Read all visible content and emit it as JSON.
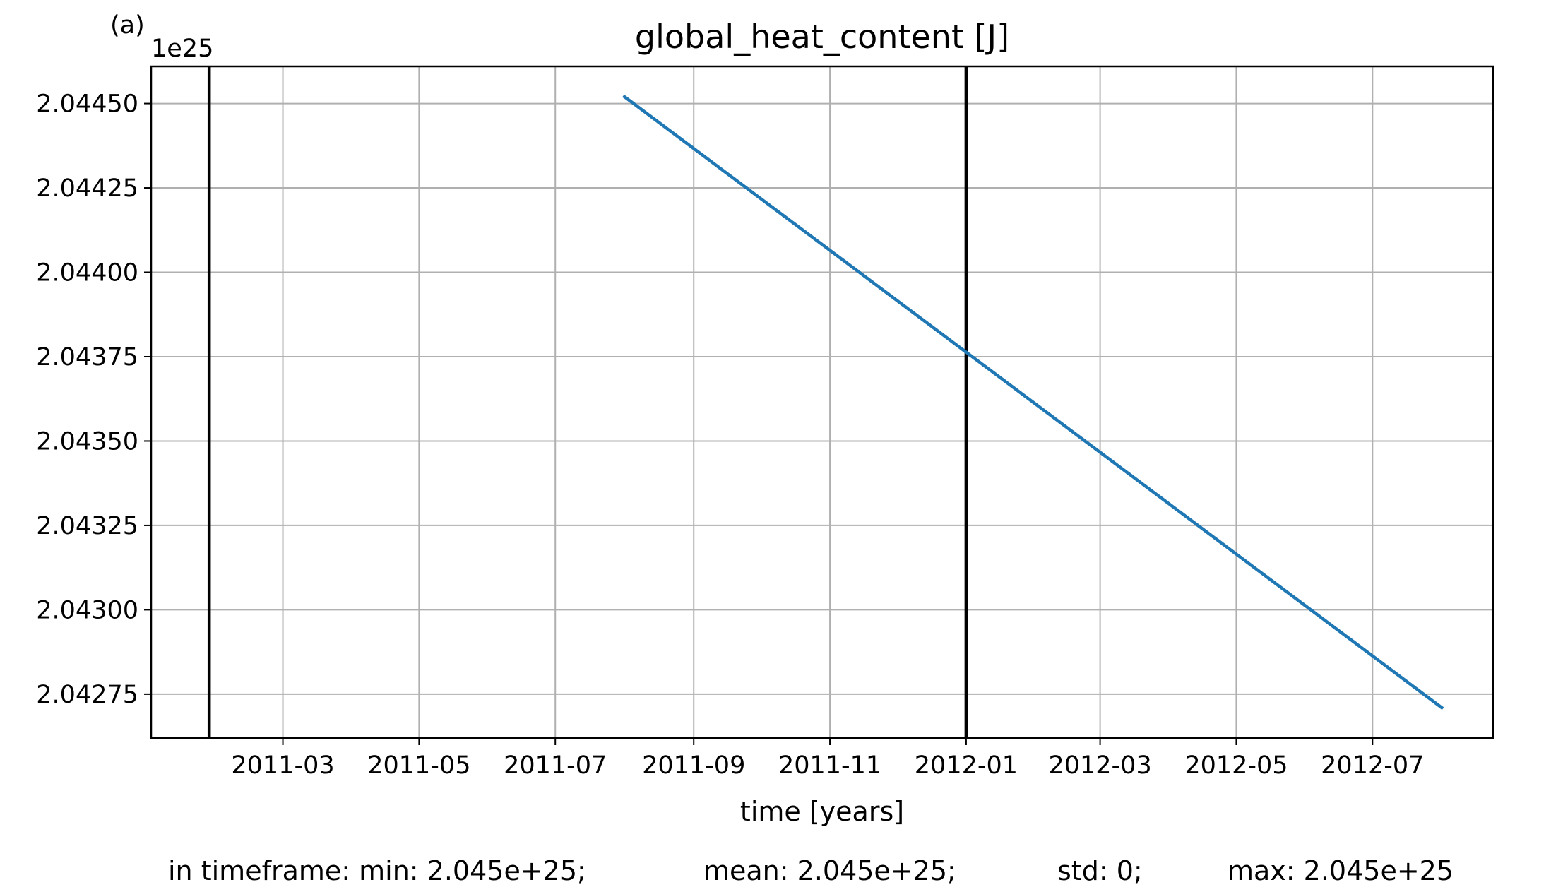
{
  "panel_label": "(a)",
  "chart_data": {
    "type": "line",
    "title": "global_heat_content [J]",
    "xlabel": "time [years]",
    "ylabel": "",
    "offset_label": "1e25",
    "y_scale_exponent": 25,
    "xlim": [
      "2011-01-01",
      "2012-08-24"
    ],
    "ylim": [
      2.04262,
      2.04461
    ],
    "x_ticks": [
      "2011-03",
      "2011-05",
      "2011-07",
      "2011-09",
      "2011-11",
      "2012-01",
      "2012-03",
      "2012-05",
      "2012-07"
    ],
    "y_ticks": [
      "2.04275",
      "2.04300",
      "2.04325",
      "2.04350",
      "2.04375",
      "2.04400",
      "2.04425",
      "2.04450"
    ],
    "grid": true,
    "series": [
      {
        "color": "#1f77b4",
        "x": [
          "2011-08-01",
          "2012-08-01"
        ],
        "y": [
          2.04452,
          2.04271
        ]
      }
    ],
    "vertical_lines": {
      "color": "#000000",
      "x": [
        "2011-01-27",
        "2012-01-01"
      ]
    }
  },
  "stats": {
    "prefix": "in timeframe: min: 2.045e+25;",
    "mean": "mean: 2.045e+25;",
    "std": "std: 0;",
    "max": "max: 2.045e+25"
  }
}
